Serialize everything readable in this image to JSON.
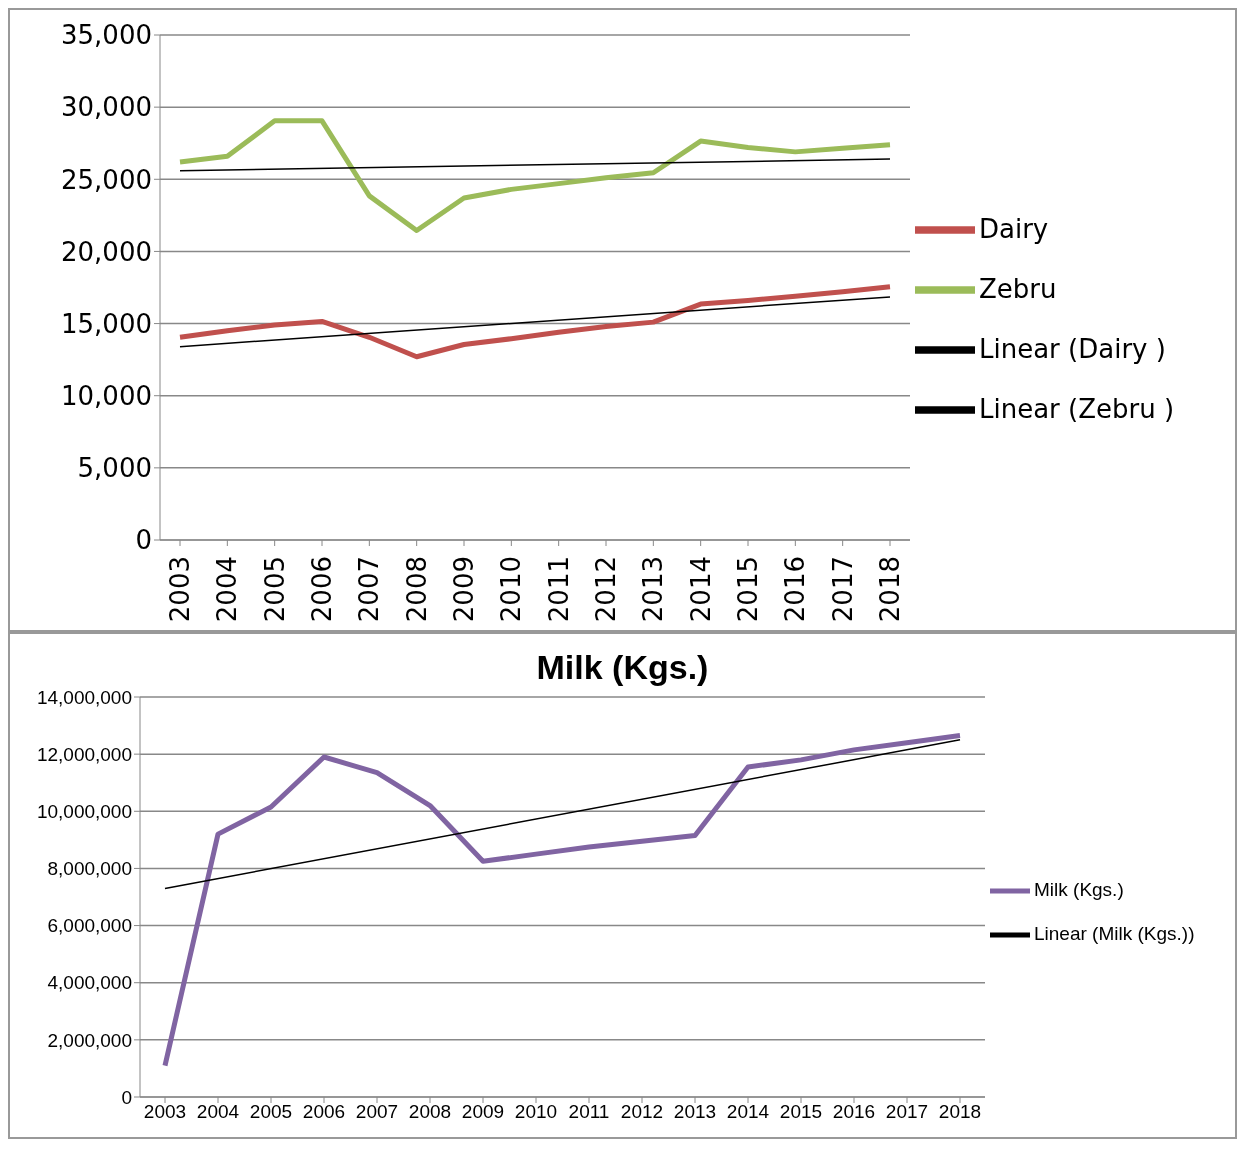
{
  "chart_data": [
    {
      "type": "line",
      "categories": [
        "2003",
        "2004",
        "2005",
        "2006",
        "2007",
        "2008",
        "2009",
        "2010",
        "2011",
        "2012",
        "2013",
        "2014",
        "2015",
        "2016",
        "2017",
        "2018"
      ],
      "series": [
        {
          "name": "Dairy",
          "color": "#c0504d",
          "values": [
            14050,
            14500,
            14900,
            15150,
            14050,
            12700,
            13550,
            13950,
            14400,
            14800,
            15100,
            16350,
            16600,
            16900,
            17200,
            17550
          ]
        },
        {
          "name": "Zebru",
          "color": "#9bbb59",
          "values": [
            26200,
            26600,
            29050,
            29050,
            23850,
            21450,
            23700,
            24300,
            24700,
            25100,
            25450,
            27650,
            27200,
            26900,
            27150,
            27400
          ]
        },
        {
          "name": "Linear (Dairy )",
          "color": "#000000",
          "values": [
            13400,
            null,
            null,
            null,
            null,
            null,
            null,
            null,
            null,
            null,
            null,
            null,
            null,
            null,
            null,
            16850
          ]
        },
        {
          "name": "Linear (Zebru )",
          "color": "#000000",
          "values": [
            25600,
            null,
            null,
            null,
            null,
            null,
            null,
            null,
            null,
            null,
            null,
            null,
            null,
            null,
            null,
            26400
          ]
        }
      ],
      "ylim": [
        0,
        35000
      ],
      "yticks": [
        0,
        {
          "value": 5000,
          "label": "5,000"
        },
        {
          "value": 10000,
          "label": "10,000"
        },
        {
          "value": 15000,
          "label": "15,000"
        },
        {
          "value": 20000,
          "label": "20,000"
        },
        {
          "value": 25000,
          "label": "25,000"
        },
        {
          "value": 30000,
          "label": "30,000"
        },
        {
          "value": 35000,
          "label": "35,000"
        }
      ],
      "grid": "y",
      "legend": "right",
      "marker": "none",
      "line_style": "solid"
    },
    {
      "type": "line",
      "title": "Milk (Kgs.)",
      "categories": [
        "2003",
        "2004",
        "2005",
        "2006",
        "2007",
        "2008",
        "2009",
        "2010",
        "2011",
        "2012",
        "2013",
        "2014",
        "2015",
        "2016",
        "2017",
        "2018"
      ],
      "series": [
        {
          "name": "Milk (Kgs.)",
          "color": "#8064a2",
          "values": [
            1100000,
            9200000,
            10150000,
            11900000,
            11350000,
            10200000,
            8250000,
            8500000,
            8750000,
            8950000,
            9150000,
            11550000,
            11800000,
            12150000,
            12400000,
            12650000
          ]
        },
        {
          "name": "Linear (Milk (Kgs.))",
          "color": "#000000",
          "values": [
            7300000,
            null,
            null,
            null,
            null,
            null,
            null,
            null,
            null,
            null,
            null,
            null,
            null,
            null,
            null,
            12500000
          ]
        }
      ],
      "ylim": [
        0,
        14000000
      ],
      "yticks": [
        0,
        {
          "value": 2000000,
          "label": "2,000,000"
        },
        {
          "value": 4000000,
          "label": "4,000,000"
        },
        {
          "value": 6000000,
          "label": "6,000,000"
        },
        {
          "value": 8000000,
          "label": "8,000,000"
        },
        {
          "value": 10000000,
          "label": "10,000,000"
        },
        {
          "value": 12000000,
          "label": "12,000,000"
        },
        {
          "value": 14000000,
          "label": "14,000,000"
        }
      ],
      "grid": "y",
      "legend": "right",
      "marker": "none",
      "line_style": "solid"
    }
  ]
}
